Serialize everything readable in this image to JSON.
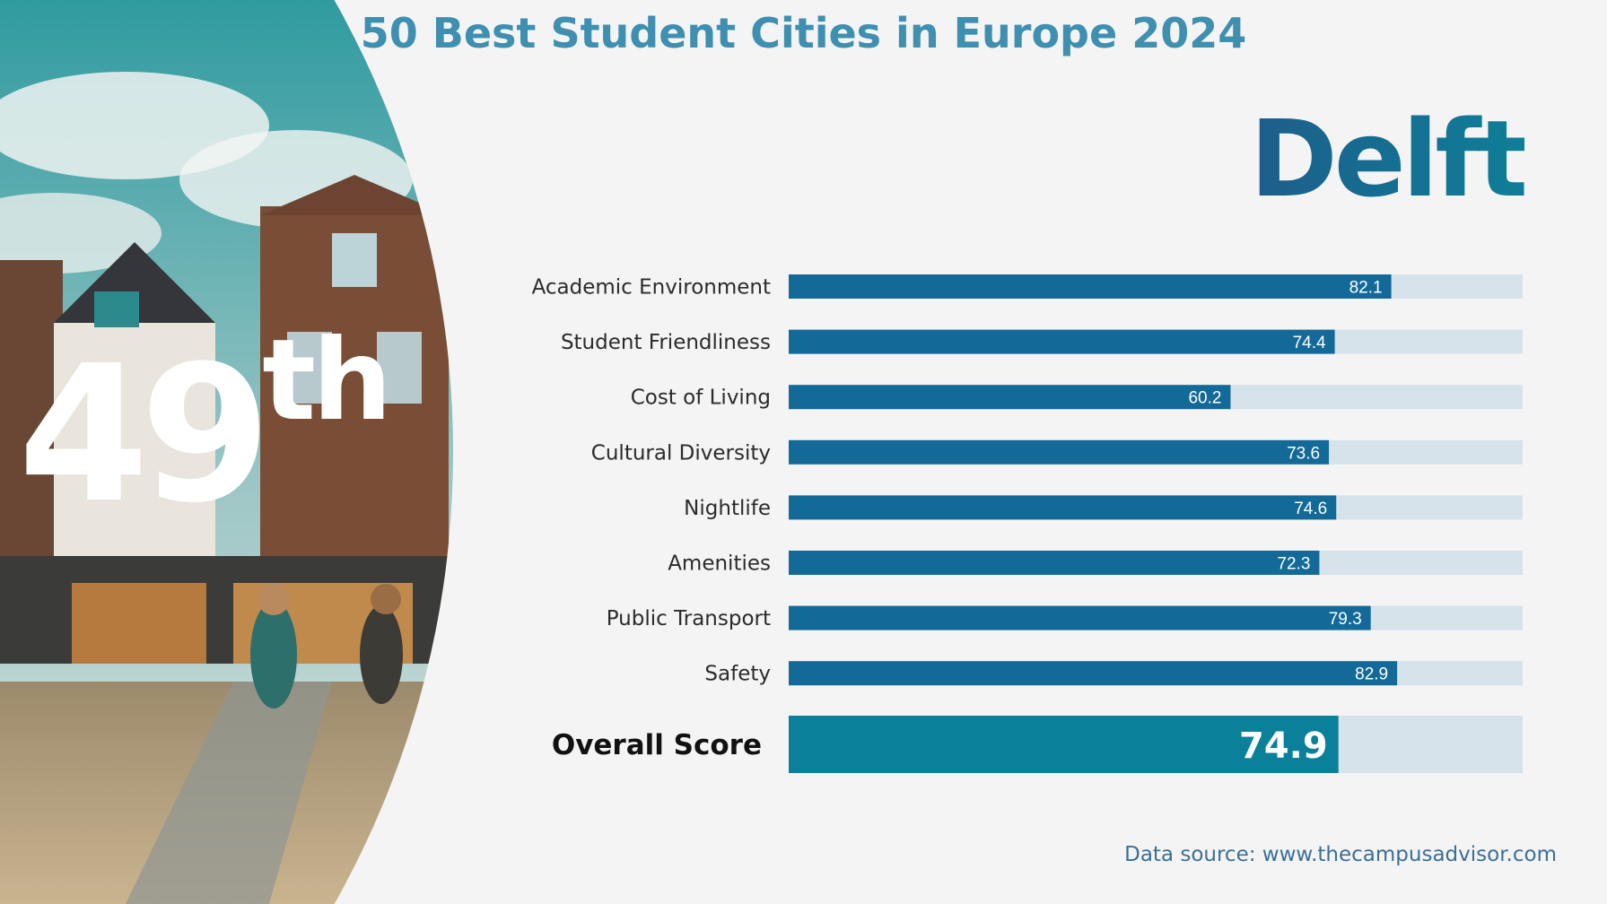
{
  "title": "50 Best Student Cities in Europe 2024",
  "city": "Delft",
  "rank": {
    "number": "49",
    "suffix": "th"
  },
  "source": "Data source: www.thecampusadvisor.com",
  "colors": {
    "bar": "#136a98",
    "track": "#d6e3eb",
    "overall_bar": "#0b809a",
    "title": "#3e8fb0"
  },
  "chart_data": {
    "type": "bar",
    "orientation": "horizontal",
    "categories": [
      "Academic Environment",
      "Student Friendliness",
      "Cost of Living",
      "Cultural Diversity",
      "Nightlife",
      "Amenities",
      "Public Transport",
      "Safety"
    ],
    "values": [
      82.1,
      74.4,
      60.2,
      73.6,
      74.6,
      72.3,
      79.3,
      82.9
    ],
    "value_labels": [
      "82.1",
      "74.4",
      "60.2",
      "73.6",
      "74.6",
      "72.3",
      "79.3",
      "82.9"
    ],
    "overall": {
      "label": "Overall Score",
      "value": 74.9,
      "value_label": "74.9"
    },
    "xlim": [
      0,
      100
    ],
    "grid": false,
    "legend": "none"
  }
}
